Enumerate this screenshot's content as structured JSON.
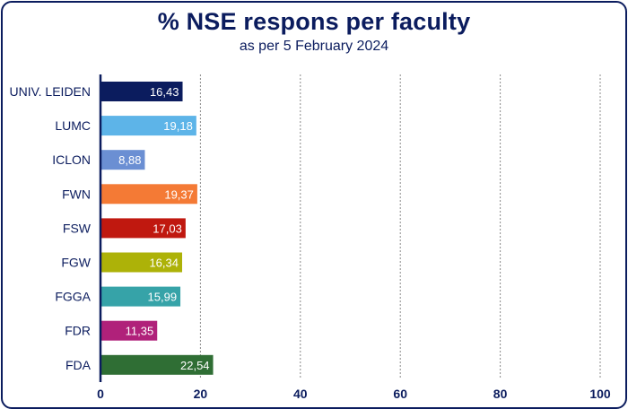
{
  "chart_data": {
    "type": "bar",
    "orientation": "horizontal",
    "title": "% NSE respons per faculty",
    "subtitle": "as per 5 February 2024",
    "categories": [
      "UNIV. LEIDEN",
      "LUMC",
      "ICLON",
      "FWN",
      "FSW",
      "FGW",
      "FGGA",
      "FDR",
      "FDA"
    ],
    "values": [
      16.43,
      19.18,
      8.88,
      19.37,
      17.03,
      16.34,
      15.99,
      11.35,
      22.54
    ],
    "value_labels": [
      "16,43",
      "19,18",
      "8,88",
      "19,37",
      "17,03",
      "16,34",
      "15,99",
      "11,35",
      "22,54"
    ],
    "colors": [
      "#0b1c5e",
      "#5db4e8",
      "#6b8fd3",
      "#f47a35",
      "#c0180f",
      "#adb208",
      "#36a3a8",
      "#b0217a",
      "#2f6e34"
    ],
    "xlim": [
      0,
      100
    ],
    "xticks": [
      0,
      20,
      40,
      60,
      80,
      100
    ],
    "grid": true
  }
}
